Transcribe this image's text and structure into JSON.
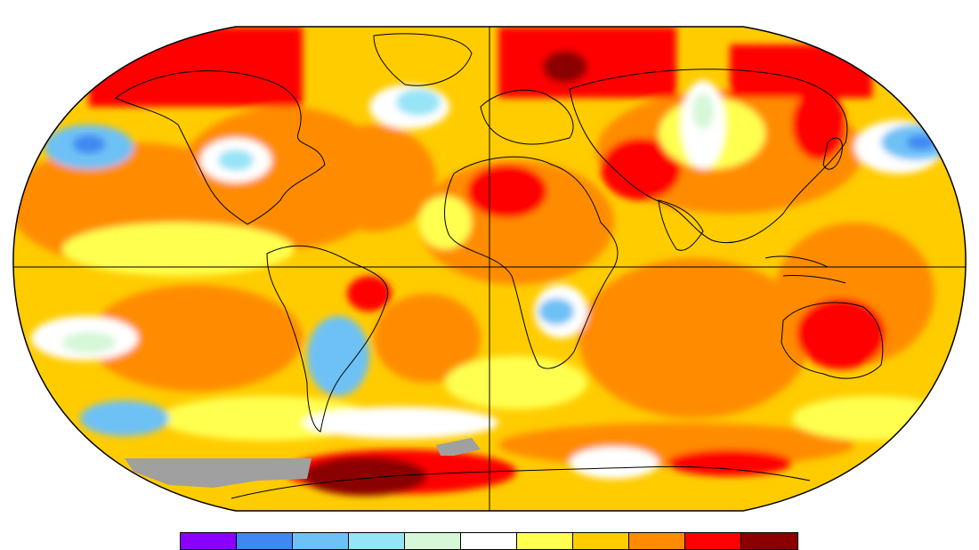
{
  "map": {
    "projection": "robinson-like",
    "graticule": "equator-and-prime-meridian",
    "no_data_color": "#a0a0a0"
  },
  "legend": {
    "colors": [
      "#8a00ff",
      "#3f88f2",
      "#6ec1f5",
      "#97e4f7",
      "#d6f7d8",
      "#ffffff",
      "#ffff50",
      "#ffcc00",
      "#ff8c00",
      "#ff0000",
      "#8b0000"
    ]
  },
  "palette": {
    "deep_red": "#8b0000",
    "red": "#ff0000",
    "orange": "#ff8c00",
    "amber": "#ffcc00",
    "yellow": "#ffff50",
    "white": "#ffffff",
    "mint": "#d6f7d8",
    "light_blue": "#97e4f7",
    "sky_blue": "#6ec1f5",
    "blue": "#3f88f2",
    "gray": "#a0a0a0"
  }
}
